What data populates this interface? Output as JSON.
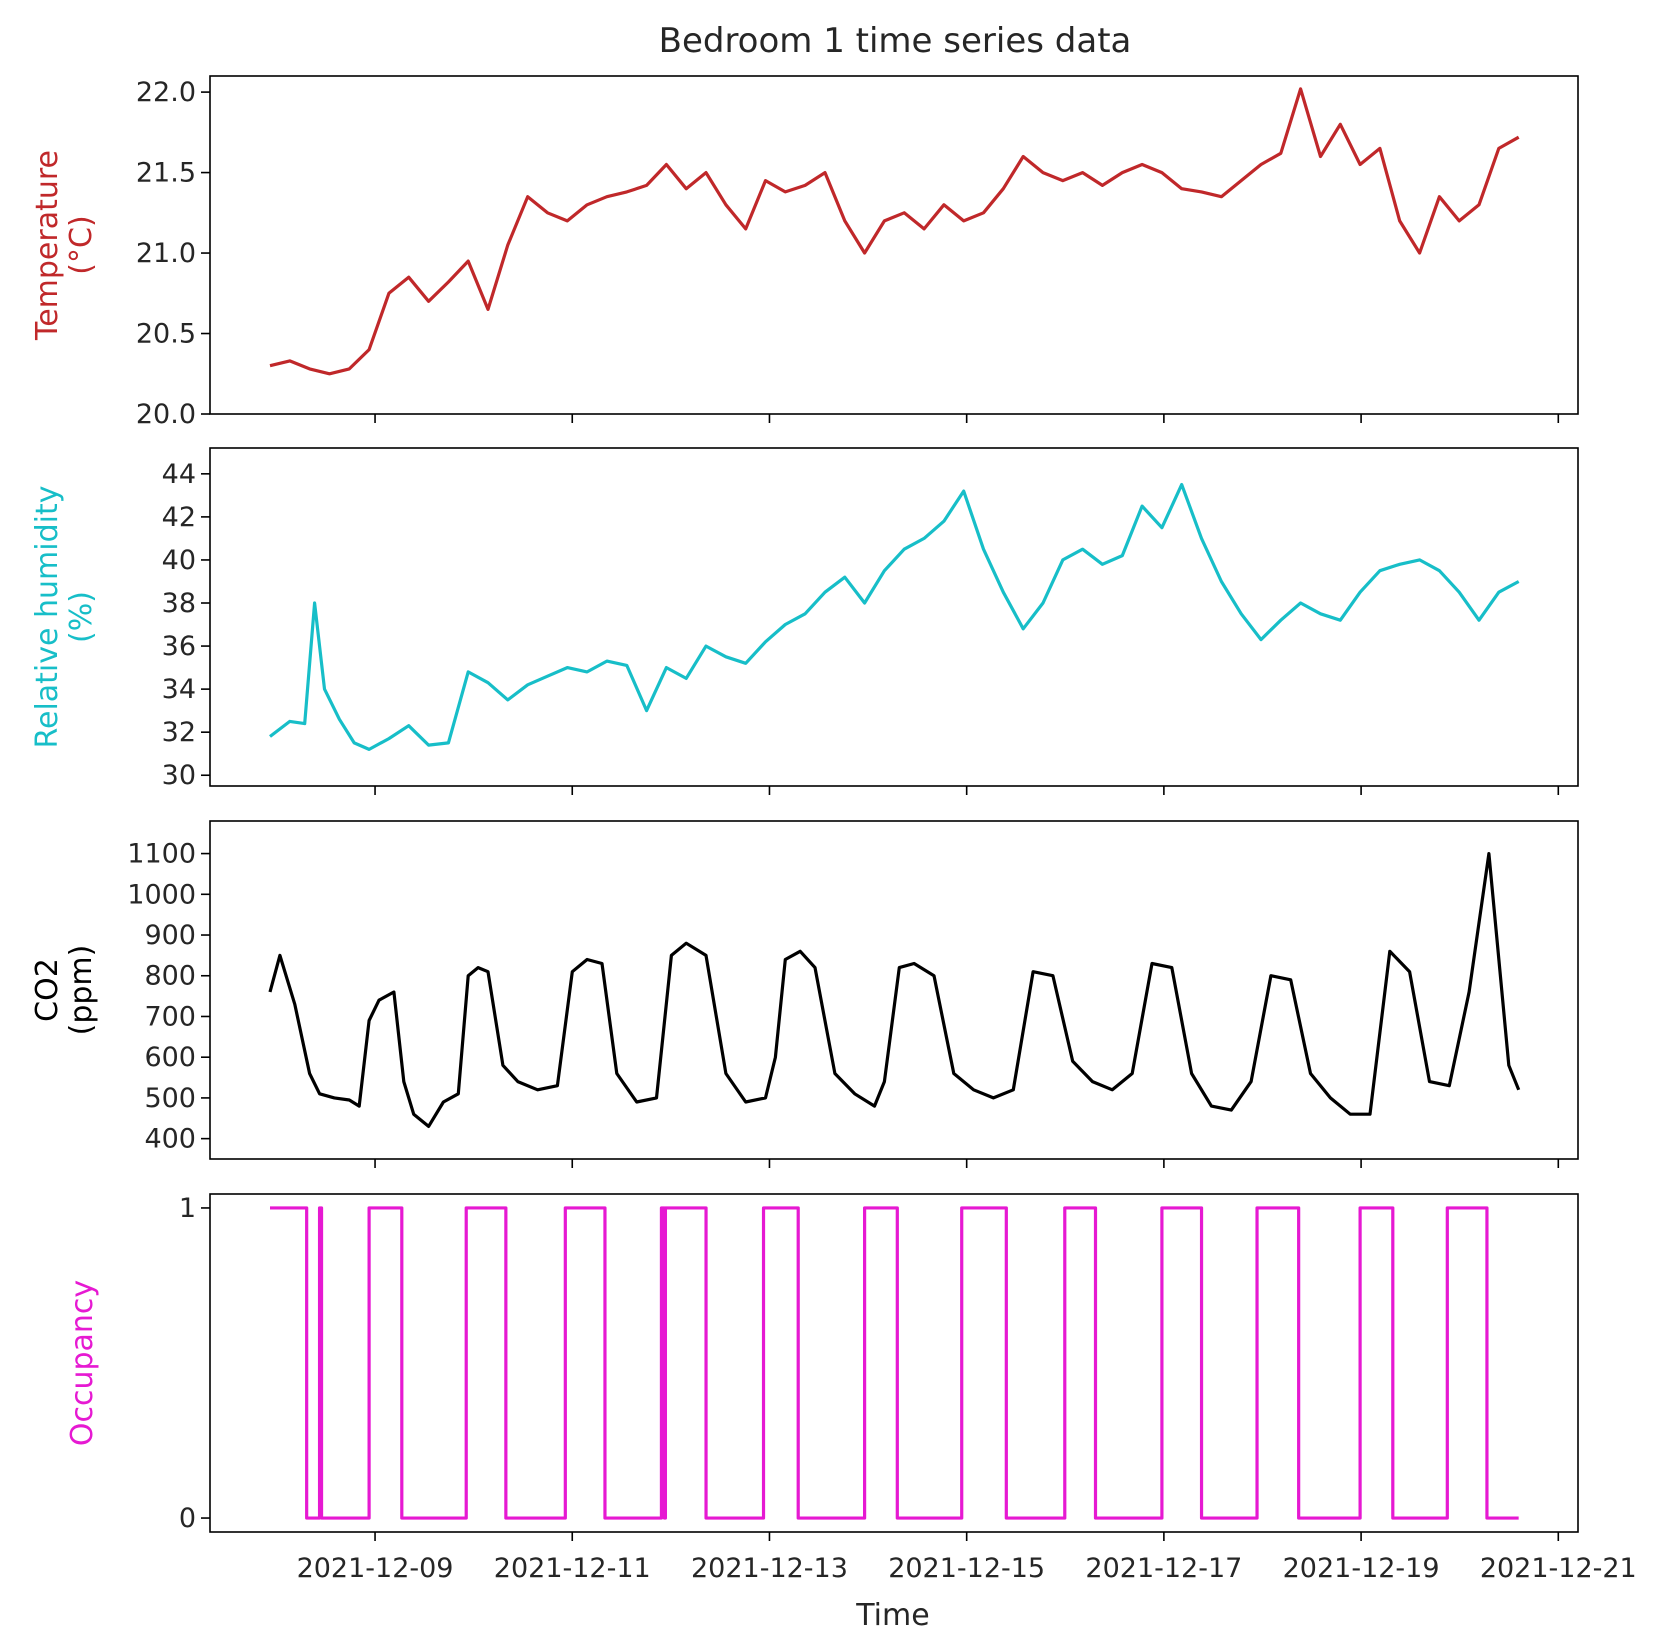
{
  "figure_title": "Bedroom 1 time series data",
  "x_axis": {
    "label": "Time",
    "ticks": [
      "2021-12-09",
      "2021-12-11",
      "2021-12-13",
      "2021-12-15",
      "2021-12-17",
      "2021-12-19",
      "2021-12-21"
    ]
  },
  "chart_data": [
    {
      "type": "line",
      "name": "temperature",
      "ylabel": [
        "Temperature",
        "(°C)"
      ],
      "color": "#c0282a",
      "ylim": [
        20.0,
        22.1
      ],
      "yticks": [
        20.0,
        20.5,
        21.0,
        21.5,
        22.0
      ],
      "ytick_labels": [
        "20.0",
        "20.5",
        "21.0",
        "21.5",
        "22.0"
      ],
      "x_days": [
        0.0,
        0.2,
        0.4,
        0.6,
        0.8,
        1.0,
        1.2,
        1.4,
        1.6,
        1.8,
        2.0,
        2.2,
        2.4,
        2.6,
        2.8,
        3.0,
        3.2,
        3.4,
        3.6,
        3.8,
        4.0,
        4.2,
        4.4,
        4.6,
        4.8,
        5.0,
        5.2,
        5.4,
        5.6,
        5.8,
        6.0,
        6.2,
        6.4,
        6.6,
        6.8,
        7.0,
        7.2,
        7.4,
        7.6,
        7.8,
        8.0,
        8.2,
        8.4,
        8.6,
        8.8,
        9.0,
        9.2,
        9.4,
        9.6,
        9.8,
        10.0,
        10.2,
        10.4,
        10.6,
        10.8,
        11.0,
        11.2,
        11.4,
        11.6,
        11.8,
        12.0,
        12.2,
        12.4,
        12.6
      ],
      "values": [
        20.3,
        20.33,
        20.28,
        20.25,
        20.28,
        20.4,
        20.75,
        20.85,
        20.7,
        20.82,
        20.95,
        20.65,
        21.05,
        21.35,
        21.25,
        21.2,
        21.3,
        21.35,
        21.38,
        21.42,
        21.55,
        21.4,
        21.5,
        21.3,
        21.15,
        21.45,
        21.38,
        21.42,
        21.5,
        21.2,
        21.0,
        21.2,
        21.25,
        21.15,
        21.3,
        21.2,
        21.25,
        21.4,
        21.6,
        21.5,
        21.45,
        21.5,
        21.42,
        21.5,
        21.55,
        21.5,
        21.4,
        21.38,
        21.35,
        21.45,
        21.55,
        21.62,
        22.02,
        21.6,
        21.8,
        21.55,
        21.65,
        21.2,
        21.0,
        21.35,
        21.2,
        21.3,
        21.65,
        21.72
      ]
    },
    {
      "type": "line",
      "name": "relative_humidity",
      "ylabel": [
        "Relative humidity",
        "(%)"
      ],
      "color": "#17bec8",
      "ylim": [
        29.5,
        45.2
      ],
      "yticks": [
        30,
        32,
        34,
        36,
        38,
        40,
        42,
        44
      ],
      "ytick_labels": [
        "30",
        "32",
        "34",
        "36",
        "38",
        "40",
        "42",
        "44"
      ],
      "x_days": [
        0.0,
        0.2,
        0.35,
        0.45,
        0.55,
        0.7,
        0.85,
        1.0,
        1.2,
        1.4,
        1.6,
        1.8,
        2.0,
        2.2,
        2.4,
        2.6,
        2.8,
        3.0,
        3.2,
        3.4,
        3.6,
        3.8,
        4.0,
        4.2,
        4.4,
        4.6,
        4.8,
        5.0,
        5.2,
        5.4,
        5.6,
        5.8,
        6.0,
        6.2,
        6.4,
        6.6,
        6.8,
        7.0,
        7.2,
        7.4,
        7.6,
        7.8,
        8.0,
        8.2,
        8.4,
        8.6,
        8.8,
        9.0,
        9.2,
        9.4,
        9.6,
        9.8,
        10.0,
        10.2,
        10.4,
        10.6,
        10.8,
        11.0,
        11.2,
        11.4,
        11.6,
        11.8,
        12.0,
        12.2,
        12.4,
        12.6
      ],
      "values": [
        31.8,
        32.5,
        32.4,
        38.0,
        34.0,
        32.6,
        31.5,
        31.2,
        31.7,
        32.3,
        31.4,
        31.5,
        34.8,
        34.3,
        33.5,
        34.2,
        34.6,
        35.0,
        34.8,
        35.3,
        35.1,
        33.0,
        35.0,
        34.5,
        36.0,
        35.5,
        35.2,
        36.2,
        37.0,
        37.5,
        38.5,
        39.2,
        38.0,
        39.5,
        40.5,
        41.0,
        41.8,
        43.2,
        40.5,
        38.5,
        36.8,
        38.0,
        40.0,
        40.5,
        39.8,
        40.2,
        42.5,
        41.5,
        43.5,
        41.0,
        39.0,
        37.5,
        36.3,
        37.2,
        38.0,
        37.5,
        37.2,
        38.5,
        39.5,
        39.8,
        40.0,
        39.5,
        38.5,
        37.2,
        38.5,
        39.0
      ]
    },
    {
      "type": "line",
      "name": "co2",
      "ylabel": [
        "CO2",
        "(ppm)"
      ],
      "color": "#000000",
      "ylim": [
        350,
        1180
      ],
      "yticks": [
        400,
        500,
        600,
        700,
        800,
        900,
        1000,
        1100
      ],
      "ytick_labels": [
        "400",
        "500",
        "600",
        "700",
        "800",
        "900",
        "1000",
        "1100"
      ],
      "x_days": [
        0.0,
        0.1,
        0.25,
        0.4,
        0.5,
        0.65,
        0.8,
        0.9,
        1.0,
        1.1,
        1.25,
        1.35,
        1.45,
        1.6,
        1.75,
        1.9,
        2.0,
        2.1,
        2.2,
        2.35,
        2.5,
        2.7,
        2.9,
        3.05,
        3.2,
        3.35,
        3.5,
        3.7,
        3.9,
        4.05,
        4.2,
        4.4,
        4.6,
        4.8,
        5.0,
        5.1,
        5.2,
        5.35,
        5.5,
        5.7,
        5.9,
        6.1,
        6.2,
        6.35,
        6.5,
        6.7,
        6.9,
        7.1,
        7.3,
        7.5,
        7.7,
        7.9,
        8.1,
        8.3,
        8.5,
        8.7,
        8.9,
        9.1,
        9.3,
        9.5,
        9.7,
        9.9,
        10.1,
        10.3,
        10.5,
        10.7,
        10.9,
        11.1,
        11.3,
        11.5,
        11.7,
        11.9,
        12.1,
        12.3,
        12.5,
        12.6
      ],
      "values": [
        760,
        850,
        730,
        560,
        510,
        500,
        495,
        480,
        690,
        740,
        760,
        540,
        460,
        430,
        490,
        510,
        800,
        820,
        810,
        580,
        540,
        520,
        530,
        810,
        840,
        830,
        560,
        490,
        500,
        850,
        880,
        850,
        560,
        490,
        500,
        600,
        840,
        860,
        820,
        560,
        510,
        480,
        540,
        820,
        830,
        800,
        560,
        520,
        500,
        520,
        810,
        800,
        590,
        540,
        520,
        560,
        830,
        820,
        560,
        480,
        470,
        540,
        800,
        790,
        560,
        500,
        460,
        460,
        860,
        810,
        540,
        530,
        760,
        1100,
        580,
        520
      ]
    },
    {
      "type": "line",
      "name": "occupancy",
      "step": true,
      "ylabel": [
        "Occupancy"
      ],
      "color": "#e619d2",
      "ylim": [
        -0.045,
        1.045
      ],
      "yticks": [
        0,
        1
      ],
      "ytick_labels": [
        "0",
        "1"
      ],
      "intervals": [
        [
          0.0,
          0.37
        ],
        [
          0.5,
          0.52
        ],
        [
          1.0,
          1.33
        ],
        [
          1.98,
          2.38
        ],
        [
          2.98,
          3.38
        ],
        [
          3.95,
          3.98
        ],
        [
          3.99,
          4.4
        ],
        [
          4.98,
          5.33
        ],
        [
          6.0,
          6.33
        ],
        [
          6.98,
          7.43
        ],
        [
          8.02,
          8.33
        ],
        [
          9.0,
          9.4
        ],
        [
          9.96,
          10.38
        ],
        [
          11.0,
          11.33
        ],
        [
          11.88,
          12.28
        ]
      ],
      "x_end": 12.6
    }
  ]
}
